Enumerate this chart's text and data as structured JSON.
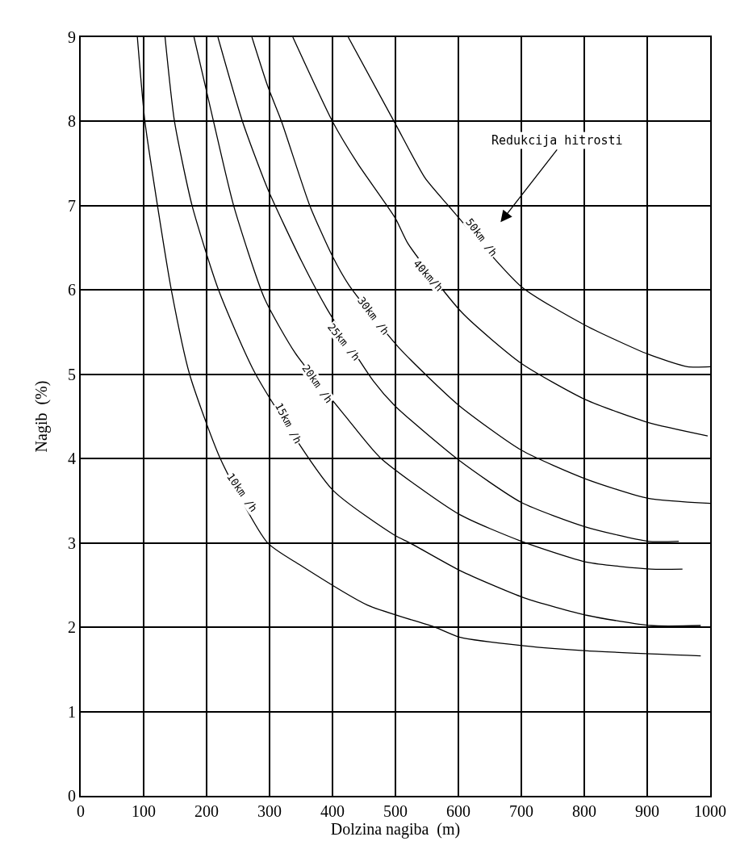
{
  "chart_data": {
    "type": "line",
    "xlabel": "Dolzina nagiba  (m)",
    "ylabel": "Nagib  (%)",
    "xlim": [
      0,
      1000
    ],
    "xticks": [
      0,
      100,
      200,
      300,
      400,
      500,
      600,
      700,
      800,
      900,
      1000
    ],
    "ylim": [
      0,
      9
    ],
    "yticks": [
      0,
      1,
      2,
      3,
      4,
      5,
      6,
      7,
      8,
      9
    ],
    "grid": true,
    "marker": "none",
    "line_style": "solid",
    "series": [
      {
        "color": "#000000",
        "x": [
          90,
          102,
          122,
          144,
          173,
          223,
          297,
          348,
          456,
          563,
          603,
          704,
          805,
          985
        ],
        "values": [
          9,
          8,
          7,
          6,
          5,
          3.98,
          3,
          2.74,
          2.26,
          2,
          1.88,
          1.78,
          1.72,
          1.66
        ]
      },
      {
        "color": "#000000",
        "x": [
          134,
          149,
          177,
          219,
          278,
          400,
          499,
          523,
          603,
          704,
          805,
          906,
          985
        ],
        "values": [
          9,
          8,
          7,
          6,
          5,
          3.63,
          3.09,
          3,
          2.67,
          2.35,
          2.14,
          2.02,
          2.02
        ]
      },
      {
        "color": "#000000",
        "x": [
          180,
          211,
          243,
          292,
          341,
          422,
          476,
          601,
          700,
          805,
          906,
          956
        ],
        "values": [
          9,
          8,
          7,
          5.9,
          5.25,
          4.49,
          4.01,
          3.34,
          3.02,
          2.77,
          2.69,
          2.69
        ]
      },
      {
        "color": "#000000",
        "x": [
          218,
          257,
          297,
          351,
          391,
          465,
          500,
          601,
          700,
          802,
          901,
          950
        ],
        "values": [
          9,
          8,
          7.2,
          6.34,
          5.78,
          4.92,
          4.62,
          3.98,
          3.48,
          3.19,
          3.02,
          3.02
        ]
      },
      {
        "color": "#000000",
        "x": [
          272,
          297,
          319,
          364,
          400,
          426,
          505,
          601,
          700,
          802,
          901,
          1000
        ],
        "values": [
          9,
          8.42,
          8,
          7,
          6.4,
          6.06,
          5.32,
          4.63,
          4.1,
          3.76,
          3.53,
          3.47
        ]
      },
      {
        "color": "#000000",
        "x": [
          337,
          400,
          440,
          500,
          520,
          606,
          700,
          802,
          901,
          996
        ],
        "values": [
          9,
          8,
          7.5,
          6.85,
          6.55,
          5.73,
          5.13,
          4.7,
          4.43,
          4.27
        ]
      },
      {
        "color": "#000000",
        "x": [
          425,
          500,
          547,
          583,
          700,
          802,
          901,
          964,
          1000
        ],
        "values": [
          9,
          7.97,
          7.33,
          7.01,
          6.04,
          5.58,
          5.24,
          5.09,
          5.09
        ]
      }
    ],
    "annotations": [
      {
        "text": "10km /h",
        "x": 257,
        "y": 3.6
      },
      {
        "text": "15km /h",
        "x": 330,
        "y": 4.42
      },
      {
        "text": "20km /h",
        "x": 376,
        "y": 4.89
      },
      {
        "text": "25km /h",
        "x": 418,
        "y": 5.39
      },
      {
        "text": "30km /h",
        "x": 465,
        "y": 5.69
      },
      {
        "text": "40km/h",
        "x": 552,
        "y": 6.17
      },
      {
        "text": "50km /h",
        "x": 637,
        "y": 6.62
      },
      "Redukcija hitrosti"
    ]
  }
}
